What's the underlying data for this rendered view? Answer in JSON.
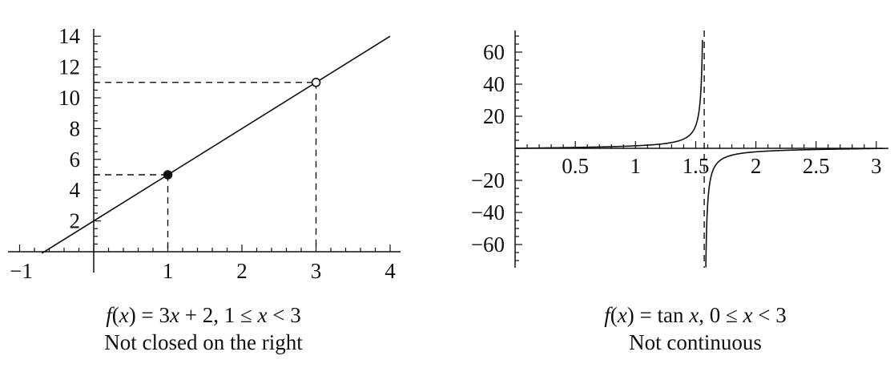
{
  "chart_data": [
    {
      "type": "line",
      "function": "f(x) = 3x + 2",
      "series": [
        {
          "x": [
            -0.7,
            4.0
          ],
          "y": [
            -0.1,
            14.0
          ]
        }
      ],
      "points": [
        {
          "x": 1,
          "y": 5,
          "style": "closed"
        },
        {
          "x": 3,
          "y": 11,
          "style": "open"
        }
      ],
      "guides": [
        {
          "x": 1,
          "y": 5
        },
        {
          "x": 3,
          "y": 11
        }
      ],
      "xlim": [
        -1.15,
        4.1
      ],
      "ylim": [
        -0.8,
        14.5
      ],
      "xticks": [
        1,
        2,
        3,
        4
      ],
      "xtick_labels": [
        "1",
        "2",
        "3",
        "4"
      ],
      "neg_xtick_label": "−1",
      "yticks": [
        2,
        4,
        6,
        8,
        10,
        12,
        14
      ],
      "ytick_labels": [
        "2",
        "4",
        "6",
        "8",
        "10",
        "12",
        "14"
      ],
      "caption_parts": [
        "f",
        "(",
        "x",
        ") = 3",
        "x",
        " + 2, 1 ≤ ",
        "x",
        " < 3"
      ],
      "subcaption": "Not closed on the right"
    },
    {
      "type": "line",
      "function": "f(x) = tan x",
      "series": [
        {
          "x_range": [
            0,
            1.556
          ]
        },
        {
          "x_range": [
            1.584,
            3.1
          ]
        }
      ],
      "asymptote_x": 1.5708,
      "xlim": [
        0,
        3.1
      ],
      "ylim": [
        -78,
        78
      ],
      "xticks": [
        0.5,
        1,
        1.5,
        2,
        2.5,
        3
      ],
      "xtick_labels": [
        "0.5",
        "1",
        "1.5",
        "2",
        "2.5",
        "3"
      ],
      "yticks": [
        60,
        40,
        20,
        -20,
        -40,
        -60
      ],
      "ytick_labels": [
        "60",
        "40",
        "20",
        "−20",
        "−40",
        "−60"
      ],
      "caption_parts": [
        "f",
        "(",
        "x",
        ") = tan ",
        "x",
        ", 0  ≤ ",
        "x",
        " < 3"
      ],
      "subcaption": "Not continuous"
    }
  ]
}
